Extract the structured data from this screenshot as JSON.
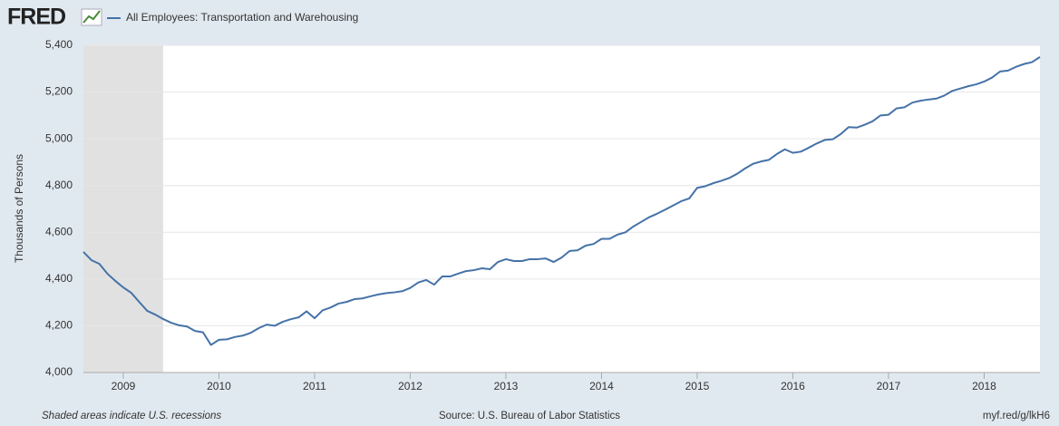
{
  "logo": "FRED",
  "footer": {
    "note": "Shaded areas indicate U.S. recessions",
    "source": "Source: U.S. Bureau of Labor Statistics",
    "link": "myf.red/g/lkH6"
  },
  "chart_data": {
    "type": "line",
    "ylabel": "Thousands of Persons",
    "xlim": [
      "2008-08",
      "2018-08"
    ],
    "xticks": [
      2009,
      2010,
      2011,
      2012,
      2013,
      2014,
      2015,
      2016,
      2017,
      2018
    ],
    "ylim": [
      4000,
      5400
    ],
    "yticks": [
      {
        "value": 4000,
        "label": "4,000"
      },
      {
        "value": 4200,
        "label": "4,200"
      },
      {
        "value": 4400,
        "label": "4,400"
      },
      {
        "value": 4600,
        "label": "4,600"
      },
      {
        "value": 4800,
        "label": "4,800"
      },
      {
        "value": 5000,
        "label": "5,000"
      },
      {
        "value": 5200,
        "label": "5,200"
      },
      {
        "value": 5400,
        "label": "5,400"
      }
    ],
    "grid": true,
    "recessions": [
      {
        "start": "2008-08",
        "end": "2009-06",
        "color": "#e1e1e1"
      }
    ],
    "x": [
      "2008-08",
      "2008-09",
      "2008-10",
      "2008-11",
      "2008-12",
      "2009-01",
      "2009-02",
      "2009-03",
      "2009-04",
      "2009-05",
      "2009-06",
      "2009-07",
      "2009-08",
      "2009-09",
      "2009-10",
      "2009-11",
      "2009-12",
      "2010-01",
      "2010-02",
      "2010-03",
      "2010-04",
      "2010-05",
      "2010-06",
      "2010-07",
      "2010-08",
      "2010-09",
      "2010-10",
      "2010-11",
      "2010-12",
      "2011-01",
      "2011-02",
      "2011-03",
      "2011-04",
      "2011-05",
      "2011-06",
      "2011-07",
      "2011-08",
      "2011-09",
      "2011-10",
      "2011-11",
      "2011-12",
      "2012-01",
      "2012-02",
      "2012-03",
      "2012-04",
      "2012-05",
      "2012-06",
      "2012-07",
      "2012-08",
      "2012-09",
      "2012-10",
      "2012-11",
      "2012-12",
      "2013-01",
      "2013-02",
      "2013-03",
      "2013-04",
      "2013-05",
      "2013-06",
      "2013-07",
      "2013-08",
      "2013-09",
      "2013-10",
      "2013-11",
      "2013-12",
      "2014-01",
      "2014-02",
      "2014-03",
      "2014-04",
      "2014-05",
      "2014-06",
      "2014-07",
      "2014-08",
      "2014-09",
      "2014-10",
      "2014-11",
      "2014-12",
      "2015-01",
      "2015-02",
      "2015-03",
      "2015-04",
      "2015-05",
      "2015-06",
      "2015-07",
      "2015-08",
      "2015-09",
      "2015-10",
      "2015-11",
      "2015-12",
      "2016-01",
      "2016-02",
      "2016-03",
      "2016-04",
      "2016-05",
      "2016-06",
      "2016-07",
      "2016-08",
      "2016-09",
      "2016-10",
      "2016-11",
      "2016-12",
      "2017-01",
      "2017-02",
      "2017-03",
      "2017-04",
      "2017-05",
      "2017-06",
      "2017-07",
      "2017-08",
      "2017-09",
      "2017-10",
      "2017-11",
      "2017-12",
      "2018-01",
      "2018-02",
      "2018-03",
      "2018-04",
      "2018-05",
      "2018-06",
      "2018-07",
      "2018-08"
    ],
    "series": [
      {
        "name": "All Employees: Transportation and Warehousing",
        "color": "#4572a7",
        "values": [
          4516,
          4481,
          4465,
          4423,
          4392,
          4364,
          4341,
          4302,
          4264,
          4248,
          4229,
          4213,
          4202,
          4197,
          4178,
          4172,
          4118,
          4140,
          4142,
          4152,
          4158,
          4170,
          4190,
          4205,
          4200,
          4217,
          4228,
          4236,
          4262,
          4232,
          4266,
          4278,
          4295,
          4302,
          4314,
          4317,
          4326,
          4334,
          4340,
          4343,
          4348,
          4362,
          4385,
          4396,
          4376,
          4411,
          4411,
          4423,
          4434,
          4438,
          4446,
          4442,
          4473,
          4485,
          4477,
          4477,
          4485,
          4485,
          4488,
          4473,
          4492,
          4520,
          4523,
          4543,
          4550,
          4572,
          4572,
          4590,
          4600,
          4625,
          4645,
          4665,
          4680,
          4697,
          4715,
          4733,
          4745,
          4790,
          4797,
          4810,
          4820,
          4832,
          4850,
          4873,
          4893,
          4903,
          4910,
          4935,
          4955,
          4940,
          4945,
          4962,
          4980,
          4995,
          4998,
          5020,
          5050,
          5048,
          5060,
          5075,
          5100,
          5103,
          5130,
          5135,
          5155,
          5163,
          5168,
          5172,
          5185,
          5205,
          5215,
          5225,
          5233,
          5245,
          5262,
          5288,
          5292,
          5308,
          5320,
          5328,
          5350
        ]
      }
    ]
  }
}
